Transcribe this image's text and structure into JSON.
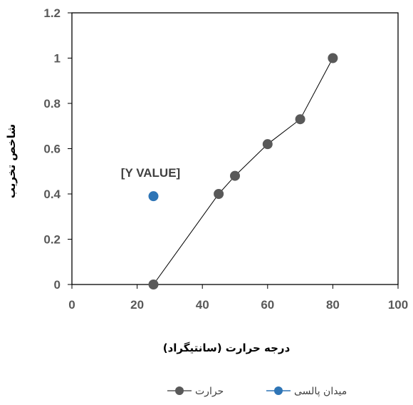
{
  "chart_data": {
    "type": "scatter",
    "xlabel": "درجه حرارت (سانتیگراد)",
    "ylabel": "شاخص تخریب",
    "xlim": [
      0,
      100
    ],
    "ylim": [
      0,
      1.2
    ],
    "x_ticks": [
      "0",
      "20",
      "40",
      "60",
      "80",
      "100"
    ],
    "y_ticks": [
      "0",
      "0.2",
      "0.4",
      "0.6",
      "0.8",
      "1",
      "1.2"
    ],
    "grid": false,
    "legend_position": "bottom",
    "series": [
      {
        "name": "حرارت",
        "color": "#595959",
        "line": true,
        "points": [
          {
            "x": 25,
            "y": 0
          },
          {
            "x": 45,
            "y": 0.4
          },
          {
            "x": 50,
            "y": 0.48
          },
          {
            "x": 60,
            "y": 0.62
          },
          {
            "x": 70,
            "y": 0.73
          },
          {
            "x": 80,
            "y": 1.0
          }
        ]
      },
      {
        "name": "میدان پالسی",
        "color": "#2E75B6",
        "line": false,
        "points": [
          {
            "x": 25,
            "y": 0.39
          }
        ],
        "data_label": "[Y VALUE]"
      }
    ]
  }
}
